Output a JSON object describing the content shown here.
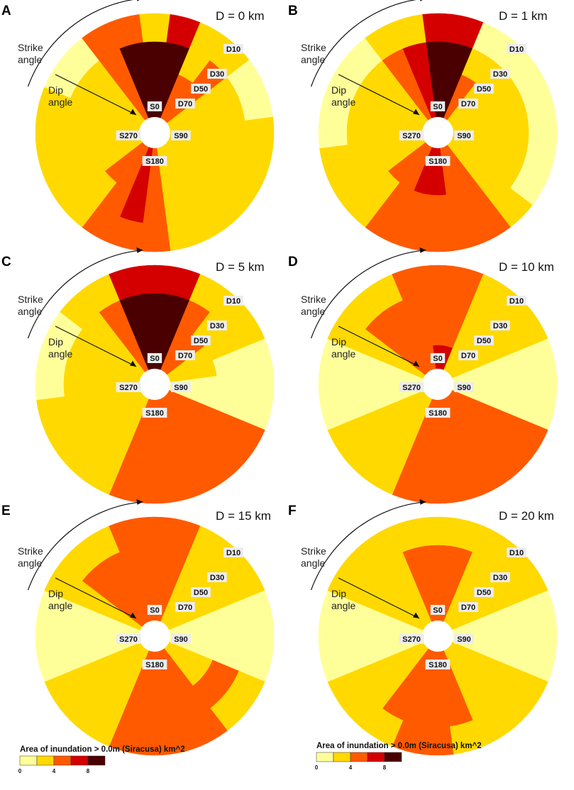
{
  "chart_data": {
    "type": "polar-sector",
    "description_axis": {
      "angular": "strike angle (S0..S345, clockwise from top)",
      "radial": "dip angle rings (D10 outer .. D70 inner)"
    },
    "strike_labels": [
      "S0",
      "S90",
      "S180",
      "S270"
    ],
    "dip_labels": [
      "D10",
      "D30",
      "D50",
      "D70"
    ],
    "arrow_labels": {
      "strike": [
        "Strike",
        "angle"
      ],
      "dip": [
        "Dip",
        "angle"
      ]
    },
    "value_scale": {
      "min": 0,
      "max": 10,
      "ticks": [
        0,
        4,
        8
      ],
      "class_breaks": [
        0,
        2,
        4,
        6,
        8,
        10
      ]
    },
    "colors": [
      "#ffff9a",
      "#ffd900",
      "#ff5a00",
      "#d40000",
      "#4a0000"
    ],
    "panels": [
      {
        "letter": "A",
        "title": "D =  0 km",
        "rings": {
          "D10": [
            3,
            6,
            2,
            2,
            1,
            1,
            2,
            2,
            2,
            2,
            2,
            2,
            4,
            5,
            4,
            2,
            2,
            2,
            2,
            2,
            1,
            1,
            4,
            5
          ],
          "D30": [
            9,
            9,
            2,
            4,
            2,
            2,
            2,
            2,
            2,
            2,
            2,
            2,
            4,
            7,
            4,
            2,
            2,
            2,
            2,
            2,
            2,
            2,
            4,
            8
          ],
          "D50": [
            9,
            9,
            5,
            4,
            2,
            2,
            2,
            2,
            2,
            2,
            2,
            3,
            5,
            7,
            5,
            4,
            2,
            2,
            2,
            2,
            2,
            2,
            5,
            8
          ],
          "D70": [
            9,
            9,
            5,
            4,
            2,
            2,
            2,
            2,
            2,
            2,
            2,
            3,
            5,
            7,
            5,
            4,
            2,
            2,
            2,
            2,
            2,
            2,
            5,
            8
          ]
        }
      },
      {
        "letter": "B",
        "title": "D =  1 km",
        "rings": {
          "D10": [
            7,
            7,
            1,
            1,
            1,
            1,
            1,
            1,
            1,
            2,
            4,
            4,
            5,
            5,
            4,
            2,
            2,
            2,
            1,
            1,
            1,
            1,
            2,
            2
          ],
          "D30": [
            9,
            9,
            2,
            2,
            2,
            2,
            2,
            2,
            2,
            2,
            4,
            4,
            5,
            5,
            4,
            2,
            2,
            2,
            2,
            2,
            2,
            2,
            4,
            7
          ],
          "D50": [
            9,
            9,
            4,
            2,
            2,
            2,
            2,
            2,
            2,
            2,
            4,
            4,
            7,
            7,
            4,
            4,
            2,
            2,
            2,
            2,
            2,
            2,
            4,
            7
          ],
          "D70": [
            9,
            9,
            4,
            2,
            2,
            2,
            2,
            2,
            2,
            2,
            4,
            4,
            7,
            7,
            4,
            4,
            2,
            2,
            2,
            2,
            2,
            2,
            4,
            7
          ]
        }
      },
      {
        "letter": "C",
        "title": "D =  5 km",
        "rings": {
          "D10": [
            7,
            7,
            2,
            2,
            2,
            1,
            1,
            1,
            4,
            4,
            4,
            4,
            4,
            4,
            2,
            2,
            2,
            2,
            1,
            1,
            1,
            2,
            2,
            7
          ],
          "D30": [
            9,
            9,
            4,
            2,
            2,
            1,
            1,
            1,
            4,
            4,
            4,
            4,
            4,
            4,
            2,
            2,
            2,
            2,
            2,
            2,
            2,
            2,
            4,
            9
          ],
          "D50": [
            9,
            9,
            4,
            4,
            2,
            2,
            1,
            1,
            4,
            4,
            4,
            4,
            4,
            4,
            2,
            2,
            2,
            2,
            2,
            2,
            2,
            2,
            4,
            9
          ],
          "D70": [
            9,
            9,
            4,
            4,
            2,
            2,
            1,
            1,
            4,
            4,
            4,
            4,
            4,
            4,
            2,
            2,
            2,
            2,
            2,
            2,
            2,
            2,
            4,
            9
          ]
        }
      },
      {
        "letter": "D",
        "title": "D =  10 km",
        "rings": {
          "D10": [
            4,
            4,
            2,
            2,
            2,
            1,
            1,
            1,
            4,
            4,
            4,
            4,
            4,
            4,
            2,
            2,
            2,
            1,
            1,
            1,
            2,
            2,
            2,
            4
          ],
          "D30": [
            4,
            4,
            2,
            2,
            2,
            1,
            1,
            1,
            4,
            4,
            4,
            4,
            4,
            4,
            2,
            2,
            2,
            1,
            1,
            1,
            2,
            4,
            4,
            4
          ],
          "D50": [
            4,
            4,
            2,
            2,
            2,
            1,
            1,
            1,
            4,
            4,
            4,
            4,
            4,
            4,
            2,
            2,
            2,
            1,
            1,
            1,
            2,
            4,
            4,
            4
          ],
          "D70": [
            7,
            7,
            2,
            2,
            2,
            1,
            1,
            1,
            4,
            4,
            4,
            4,
            4,
            4,
            2,
            2,
            2,
            1,
            1,
            1,
            2,
            4,
            4,
            4
          ]
        }
      },
      {
        "letter": "E",
        "title": "D =  15 km",
        "rings": {
          "D10": [
            4,
            4,
            2,
            2,
            2,
            1,
            1,
            1,
            2,
            2,
            4,
            4,
            4,
            4,
            2,
            2,
            2,
            1,
            1,
            1,
            2,
            2,
            2,
            4
          ],
          "D30": [
            4,
            4,
            2,
            2,
            2,
            1,
            1,
            1,
            4,
            4,
            4,
            4,
            4,
            4,
            2,
            2,
            2,
            1,
            1,
            1,
            2,
            4,
            4,
            4
          ],
          "D50": [
            4,
            4,
            2,
            2,
            2,
            1,
            1,
            1,
            2,
            2,
            4,
            4,
            4,
            4,
            2,
            2,
            2,
            1,
            1,
            1,
            2,
            4,
            4,
            4
          ],
          "D70": [
            4,
            4,
            2,
            2,
            2,
            1,
            1,
            1,
            2,
            2,
            4,
            4,
            4,
            4,
            2,
            2,
            2,
            1,
            1,
            1,
            2,
            4,
            4,
            4
          ]
        }
      },
      {
        "letter": "F",
        "title": "D =  20 km",
        "rings": {
          "D10": [
            2,
            2,
            2,
            2,
            2,
            1,
            1,
            1,
            2,
            2,
            2,
            2,
            4,
            4,
            2,
            2,
            2,
            1,
            1,
            1,
            2,
            2,
            2,
            2
          ],
          "D30": [
            4,
            4,
            2,
            2,
            2,
            1,
            1,
            1,
            2,
            2,
            2,
            4,
            4,
            4,
            4,
            2,
            2,
            1,
            1,
            1,
            2,
            2,
            2,
            4
          ],
          "D50": [
            4,
            4,
            2,
            2,
            2,
            1,
            1,
            1,
            2,
            2,
            2,
            4,
            4,
            4,
            4,
            2,
            2,
            1,
            1,
            1,
            2,
            2,
            2,
            4
          ],
          "D70": [
            4,
            4,
            2,
            2,
            2,
            1,
            1,
            1,
            2,
            2,
            2,
            4,
            4,
            4,
            4,
            2,
            2,
            1,
            1,
            1,
            2,
            2,
            2,
            4
          ]
        }
      }
    ],
    "legends": [
      {
        "title": "Area of inundation > 0.0m (Siracusa)  km^2",
        "tick_labels": [
          "0",
          "4",
          "8"
        ]
      },
      {
        "title": "Area of inundation > 0.0m (Siracusa)  km^2",
        "tick_labels": [
          "0",
          "4",
          "8"
        ]
      }
    ]
  }
}
